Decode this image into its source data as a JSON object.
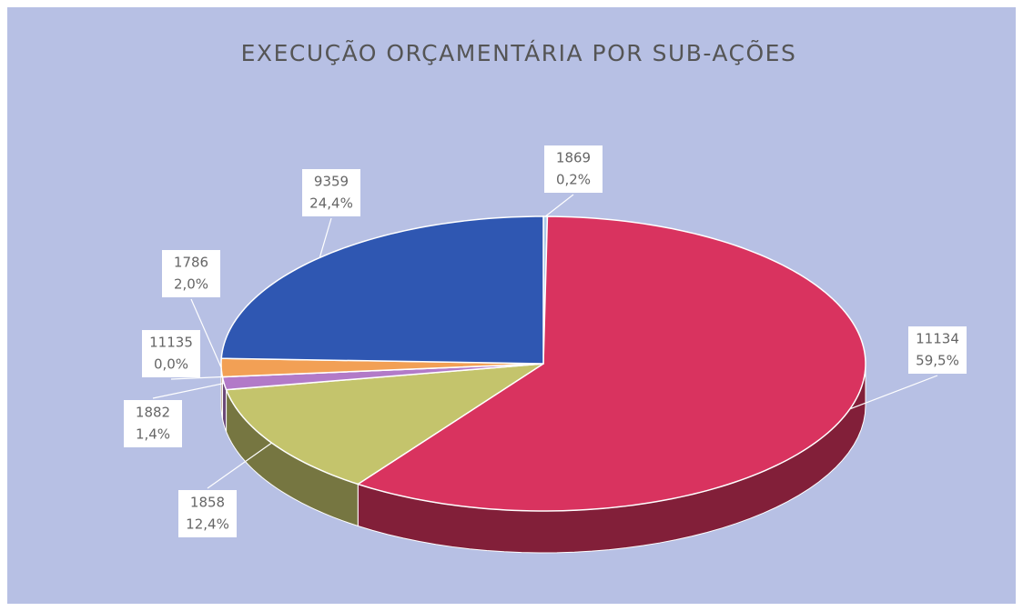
{
  "chart_data": {
    "type": "pie3d",
    "title": "EXECUÇÃO ORÇAMENTÁRIA POR SUB-AÇÕES",
    "categories": [
      "1869",
      "11134",
      "1858",
      "1882",
      "11135",
      "1786",
      "9359"
    ],
    "values": [
      0.2,
      59.5,
      12.4,
      1.4,
      0.0,
      2.0,
      24.4
    ],
    "value_labels": [
      "0,2%",
      "59,5%",
      "12,4%",
      "1,4%",
      "0,0%",
      "2,0%",
      "24,4%"
    ],
    "colors": [
      "#a9c8e8",
      "#d9335f",
      "#c4c46c",
      "#b27ac8",
      "#6fb0d8",
      "#f2a055",
      "#2f57b2"
    ]
  }
}
